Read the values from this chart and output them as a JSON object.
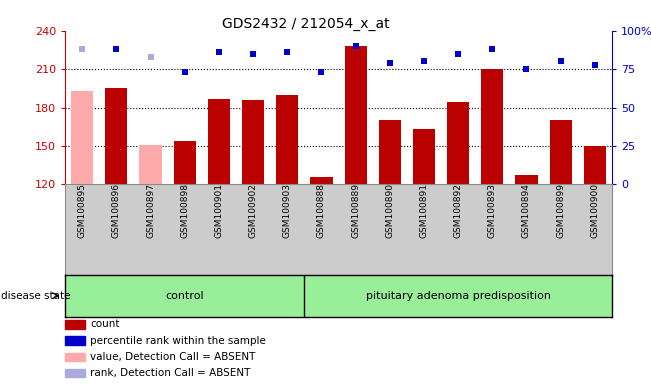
{
  "title": "GDS2432 / 212054_x_at",
  "samples": [
    "GSM100895",
    "GSM100896",
    "GSM100897",
    "GSM100898",
    "GSM100901",
    "GSM100902",
    "GSM100903",
    "GSM100888",
    "GSM100889",
    "GSM100890",
    "GSM100891",
    "GSM100892",
    "GSM100893",
    "GSM100894",
    "GSM100899",
    "GSM100900"
  ],
  "values": [
    193,
    195,
    151,
    154,
    187,
    186,
    190,
    126,
    228,
    170,
    163,
    184,
    210,
    127,
    170,
    150
  ],
  "absent": [
    true,
    false,
    true,
    false,
    false,
    false,
    false,
    false,
    false,
    false,
    false,
    false,
    false,
    false,
    false,
    false
  ],
  "percentile_ranks_pct": [
    88,
    88,
    83,
    73,
    86,
    85,
    86,
    73,
    90,
    79,
    80,
    85,
    88,
    75,
    80,
    78
  ],
  "rank_absent": [
    true,
    false,
    true,
    false,
    false,
    false,
    false,
    false,
    false,
    false,
    false,
    false,
    false,
    false,
    false,
    false
  ],
  "ylim": [
    120,
    240
  ],
  "y2lim": [
    0,
    100
  ],
  "yticks": [
    120,
    150,
    180,
    210,
    240
  ],
  "y2ticks": [
    0,
    25,
    50,
    75,
    100
  ],
  "bar_color": "#bb0000",
  "bar_absent_color": "#ffaaaa",
  "marker_color": "#0000cc",
  "marker_absent_color": "#aaaadd",
  "group1_label": "control",
  "group2_label": "pituitary adenoma predisposition",
  "group1_count": 7,
  "group2_count": 9,
  "group_bg_color": "#99ee99",
  "tick_area_bg": "#cccccc",
  "disease_state_label": "disease state",
  "legend_items": [
    {
      "label": "count",
      "color": "#bb0000"
    },
    {
      "label": "percentile rank within the sample",
      "color": "#0000cc"
    },
    {
      "label": "value, Detection Call = ABSENT",
      "color": "#ffaaaa"
    },
    {
      "label": "rank, Detection Call = ABSENT",
      "color": "#aaaadd"
    }
  ]
}
